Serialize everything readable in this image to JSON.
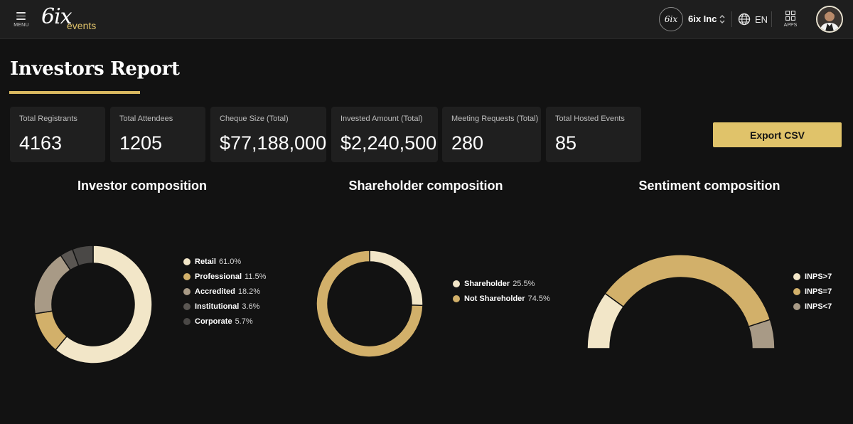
{
  "header": {
    "menu_label": "MENU",
    "logo_mark": "6ix",
    "logo_events": "events",
    "org_logo_text": "6ix",
    "org_name": "6ix Inc",
    "language": "EN",
    "apps_label": "APPS"
  },
  "page": {
    "title": "Investors Report",
    "export_label": "Export CSV"
  },
  "stats": [
    {
      "label": "Total Registrants",
      "value": "4163"
    },
    {
      "label": "Total Attendees",
      "value": "1205"
    },
    {
      "label": "Cheque Size (Total)",
      "value": "$77,188,000"
    },
    {
      "label": "Invested Amount (Total)",
      "value": "$2,240,500"
    },
    {
      "label": "Meeting Requests (Total)",
      "value": "280"
    },
    {
      "label": "Total Hosted Events",
      "value": "85"
    }
  ],
  "colors": {
    "accent": "#e0c36a",
    "background": "#121212",
    "card": "#1f1f1f",
    "cream": "#f2e6c8",
    "gold": "#d2b06a",
    "taupe": "#a89a86",
    "gray": "#5a5652",
    "dark_gray": "#4a4846"
  },
  "chart_data": [
    {
      "type": "pie",
      "title": "Investor composition",
      "labels": [
        "Retail",
        "Professional",
        "Accredited",
        "Institutional",
        "Corporate"
      ],
      "values": [
        61.0,
        11.5,
        18.2,
        3.6,
        5.7
      ],
      "display": [
        "61.0%",
        "11.5%",
        "18.2%",
        "3.6%",
        "5.7%"
      ],
      "colors": [
        "#f2e6c8",
        "#d2b06a",
        "#a89a86",
        "#5a5652",
        "#4a4846"
      ]
    },
    {
      "type": "pie",
      "title": "Shareholder composition",
      "labels": [
        "Shareholder",
        "Not Shareholder"
      ],
      "values": [
        25.5,
        74.5
      ],
      "display": [
        "25.5%",
        "74.5%"
      ],
      "colors": [
        "#f2e6c8",
        "#d2b06a"
      ]
    },
    {
      "type": "pie",
      "title": "Sentiment composition",
      "labels": [
        "INPS>7",
        "INPS=7",
        "INPS<7"
      ],
      "values": [
        20,
        70,
        10
      ],
      "display": [
        "",
        "",
        ""
      ],
      "colors": [
        "#f2e6c8",
        "#d2b06a",
        "#a89a86"
      ]
    }
  ]
}
